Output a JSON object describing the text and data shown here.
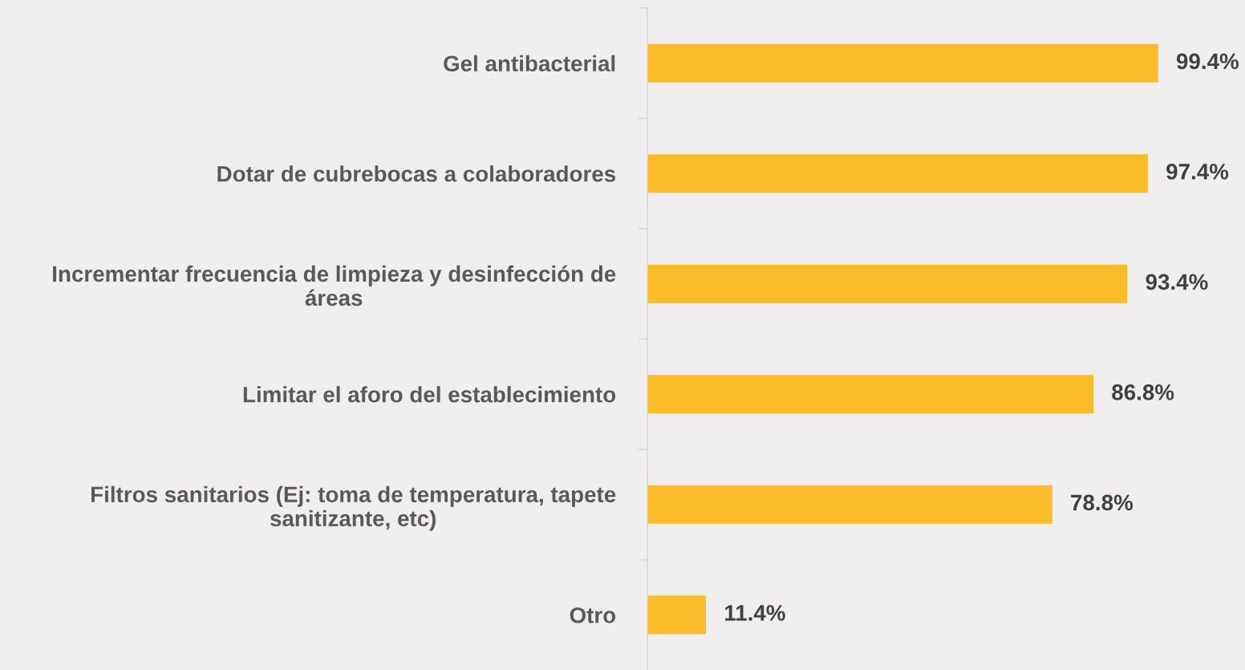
{
  "chart_data": {
    "type": "bar",
    "orientation": "horizontal",
    "categories": [
      "Gel antibacterial",
      "Dotar de cubrebocas a colaboradores",
      "Incrementar frecuencia de limpieza y desinfección de áreas",
      "Limitar el aforo del establecimiento",
      "Filtros sanitarios (Ej: toma de temperatura, tapete sanitizante, etc)",
      "Otro"
    ],
    "values": [
      99.4,
      97.4,
      93.4,
      86.8,
      78.8,
      11.4
    ],
    "color": "#fbbc2a",
    "value_labels": [
      "99.4%",
      "97.4%",
      "93.4%",
      "86.8%",
      "78.8%",
      "11.4%"
    ],
    "grid": false,
    "legend": false
  }
}
